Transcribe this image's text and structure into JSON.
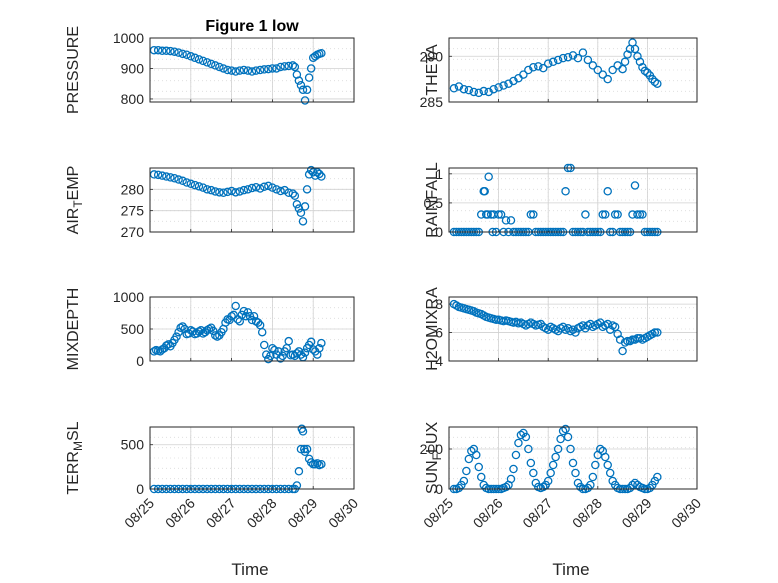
{
  "figure_title": "Figure 1 low",
  "colors": {
    "marker": "#0072BD",
    "axis": "#262626",
    "grid": "#dcdcdc"
  },
  "chart_data": [
    {
      "type": "scatter",
      "title": "Figure 1 low",
      "xlabel": "",
      "ylabel": "PRESSURE",
      "xlim": [
        0,
        5
      ],
      "ylim": [
        790,
        1000
      ],
      "yticks": [
        800,
        900,
        1000
      ],
      "xticks": [
        0,
        1,
        2,
        3,
        4,
        5
      ],
      "xticklabels": [
        "08/25",
        "08/26",
        "08/27",
        "08/28",
        "08/29",
        "08/30"
      ],
      "show_xticklabels": false,
      "grid": true,
      "x": [
        0.1,
        0.2,
        0.3,
        0.4,
        0.5,
        0.6,
        0.7,
        0.8,
        0.9,
        1.0,
        1.1,
        1.2,
        1.3,
        1.4,
        1.5,
        1.6,
        1.7,
        1.8,
        1.9,
        2.0,
        2.1,
        2.2,
        2.3,
        2.4,
        2.5,
        2.6,
        2.7,
        2.8,
        2.9,
        3.0,
        3.1,
        3.2,
        3.3,
        3.4,
        3.5,
        3.55,
        3.6,
        3.65,
        3.7,
        3.75,
        3.8,
        3.85,
        3.9,
        3.95,
        4.0,
        4.05,
        4.1,
        4.15,
        4.2
      ],
      "y": [
        960,
        960,
        958,
        958,
        957,
        955,
        952,
        948,
        945,
        940,
        935,
        930,
        925,
        920,
        915,
        910,
        905,
        900,
        895,
        893,
        890,
        893,
        895,
        893,
        890,
        893,
        895,
        897,
        898,
        900,
        900,
        905,
        907,
        908,
        910,
        905,
        880,
        860,
        845,
        830,
        795,
        830,
        870,
        900,
        935,
        940,
        945,
        948,
        950
      ]
    },
    {
      "type": "scatter",
      "title": "",
      "xlabel": "",
      "ylabel": "THETA",
      "xlim": [
        0,
        5
      ],
      "ylim": [
        285,
        292
      ],
      "yticks": [
        285,
        290
      ],
      "xticks": [
        0,
        1,
        2,
        3,
        4,
        5
      ],
      "xticklabels": [
        "08/25",
        "08/26",
        "08/27",
        "08/28",
        "08/29",
        "08/30"
      ],
      "show_xticklabels": false,
      "grid": true,
      "x": [
        0.1,
        0.2,
        0.3,
        0.4,
        0.5,
        0.6,
        0.7,
        0.8,
        0.9,
        1.0,
        1.1,
        1.2,
        1.3,
        1.4,
        1.5,
        1.6,
        1.7,
        1.8,
        1.9,
        2.0,
        2.1,
        2.2,
        2.3,
        2.4,
        2.5,
        2.6,
        2.7,
        2.8,
        2.9,
        3.0,
        3.1,
        3.2,
        3.3,
        3.4,
        3.5,
        3.55,
        3.6,
        3.65,
        3.7,
        3.75,
        3.8,
        3.85,
        3.9,
        3.95,
        4.0,
        4.05,
        4.1,
        4.15,
        4.2
      ],
      "y": [
        286.5,
        286.7,
        286.4,
        286.3,
        286.1,
        286.0,
        286.2,
        286.1,
        286.4,
        286.6,
        286.8,
        287.0,
        287.3,
        287.6,
        288.0,
        288.5,
        288.8,
        288.9,
        288.7,
        289.2,
        289.4,
        289.6,
        289.8,
        289.9,
        290.1,
        289.8,
        290.4,
        289.6,
        289.0,
        288.5,
        288.0,
        287.5,
        288.5,
        289.0,
        288.6,
        289.4,
        290.2,
        290.8,
        291.5,
        290.8,
        290.0,
        289.4,
        288.8,
        288.4,
        288.2,
        287.9,
        287.5,
        287.2,
        287.0
      ]
    },
    {
      "type": "scatter",
      "title": "",
      "xlabel": "",
      "ylabel": "AIR_TEMP",
      "xlim": [
        0,
        5
      ],
      "ylim": [
        270,
        285
      ],
      "yticks": [
        270,
        275,
        280
      ],
      "xticks": [
        0,
        1,
        2,
        3,
        4,
        5
      ],
      "xticklabels": [
        "08/25",
        "08/26",
        "08/27",
        "08/28",
        "08/29",
        "08/30"
      ],
      "show_xticklabels": false,
      "grid": true,
      "x": [
        0.1,
        0.2,
        0.3,
        0.4,
        0.5,
        0.6,
        0.7,
        0.8,
        0.9,
        1.0,
        1.1,
        1.2,
        1.3,
        1.4,
        1.5,
        1.6,
        1.7,
        1.8,
        1.9,
        2.0,
        2.1,
        2.2,
        2.3,
        2.4,
        2.5,
        2.6,
        2.7,
        2.8,
        2.9,
        3.0,
        3.1,
        3.2,
        3.3,
        3.4,
        3.5,
        3.55,
        3.6,
        3.65,
        3.7,
        3.75,
        3.8,
        3.85,
        3.9,
        3.95,
        4.0,
        4.05,
        4.1,
        4.15,
        4.2
      ],
      "y": [
        283.5,
        283.4,
        283.2,
        283.0,
        282.8,
        282.6,
        282.3,
        282.0,
        281.6,
        281.3,
        281.0,
        280.7,
        280.4,
        280.0,
        279.8,
        279.5,
        279.3,
        279.2,
        279.4,
        279.6,
        279.3,
        279.5,
        279.8,
        280.0,
        280.3,
        280.5,
        280.2,
        280.6,
        280.8,
        280.4,
        280.0,
        279.6,
        279.8,
        279.2,
        279.0,
        278.5,
        276.5,
        275.5,
        274.5,
        272.5,
        276.0,
        280.0,
        283.5,
        284.5,
        284.0,
        283.2,
        284.0,
        283.6,
        283.0
      ]
    },
    {
      "type": "scatter",
      "title": "",
      "xlabel": "",
      "ylabel": "RAINFALL",
      "xlim": [
        0,
        5
      ],
      "ylim": [
        0,
        1.1
      ],
      "yticks": [
        0,
        0.5,
        1
      ],
      "xticks": [
        0,
        1,
        2,
        3,
        4,
        5
      ],
      "xticklabels": [
        "08/25",
        "08/26",
        "08/27",
        "08/28",
        "08/29",
        "08/30"
      ],
      "show_xticklabels": false,
      "grid": true,
      "x": [
        0.1,
        0.15,
        0.2,
        0.25,
        0.3,
        0.35,
        0.4,
        0.45,
        0.5,
        0.55,
        0.6,
        0.65,
        0.7,
        0.72,
        0.75,
        0.78,
        0.8,
        0.85,
        0.88,
        0.9,
        0.95,
        1.0,
        1.05,
        1.1,
        1.15,
        1.2,
        1.25,
        1.3,
        1.35,
        1.4,
        1.45,
        1.5,
        1.55,
        1.6,
        1.65,
        1.7,
        1.75,
        1.8,
        1.85,
        1.9,
        1.95,
        2.0,
        2.05,
        2.1,
        2.15,
        2.2,
        2.25,
        2.3,
        2.35,
        2.4,
        2.45,
        2.5,
        2.55,
        2.6,
        2.65,
        2.7,
        2.75,
        2.8,
        2.85,
        2.9,
        2.95,
        3.0,
        3.05,
        3.1,
        3.15,
        3.2,
        3.25,
        3.3,
        3.35,
        3.4,
        3.45,
        3.5,
        3.55,
        3.6,
        3.65,
        3.7,
        3.75,
        3.8,
        3.85,
        3.9,
        3.95,
        4.0,
        4.05,
        4.1,
        4.15,
        4.2
      ],
      "y": [
        0,
        0,
        0,
        0,
        0,
        0,
        0,
        0,
        0,
        0,
        0,
        0.3,
        0.7,
        0.7,
        0.3,
        0.3,
        0.95,
        0.3,
        0,
        0.3,
        0,
        0.3,
        0.3,
        0,
        0.2,
        0,
        0.2,
        0,
        0,
        0,
        0,
        0,
        0,
        0,
        0.3,
        0.3,
        0,
        0,
        0,
        0,
        0,
        0,
        0,
        0,
        0,
        0,
        0,
        0,
        0.7,
        1.1,
        1.1,
        0,
        0,
        0,
        0,
        0,
        0.3,
        0,
        0,
        0,
        0,
        0,
        0,
        0.3,
        0.3,
        0.7,
        0,
        0,
        0.3,
        0.3,
        0,
        0,
        0,
        0,
        0,
        0.3,
        0.8,
        0.3,
        0.3,
        0.3,
        0,
        0,
        0,
        0,
        0,
        0
      ]
    },
    {
      "type": "scatter",
      "title": "",
      "xlabel": "",
      "ylabel": "MIXDEPTH",
      "xlim": [
        0,
        5
      ],
      "ylim": [
        0,
        1000
      ],
      "yticks": [
        0,
        500,
        1000
      ],
      "xticks": [
        0,
        1,
        2,
        3,
        4,
        5
      ],
      "xticklabels": [
        "08/25",
        "08/26",
        "08/27",
        "08/28",
        "08/29",
        "08/30"
      ],
      "show_xticklabels": false,
      "grid": true,
      "x": [
        0.1,
        0.15,
        0.2,
        0.25,
        0.3,
        0.35,
        0.4,
        0.45,
        0.5,
        0.55,
        0.6,
        0.65,
        0.7,
        0.75,
        0.8,
        0.85,
        0.9,
        0.95,
        1.0,
        1.05,
        1.1,
        1.15,
        1.2,
        1.25,
        1.3,
        1.35,
        1.4,
        1.45,
        1.5,
        1.55,
        1.6,
        1.65,
        1.7,
        1.75,
        1.8,
        1.85,
        1.9,
        1.95,
        2.0,
        2.05,
        2.1,
        2.15,
        2.2,
        2.25,
        2.3,
        2.35,
        2.4,
        2.45,
        2.5,
        2.55,
        2.6,
        2.65,
        2.7,
        2.75,
        2.8,
        2.85,
        2.9,
        2.95,
        3.0,
        3.05,
        3.1,
        3.15,
        3.2,
        3.25,
        3.3,
        3.35,
        3.4,
        3.45,
        3.5,
        3.55,
        3.6,
        3.65,
        3.7,
        3.75,
        3.8,
        3.85,
        3.9,
        3.95,
        4.0,
        4.05,
        4.1,
        4.15,
        4.2
      ],
      "y": [
        150,
        170,
        160,
        150,
        180,
        200,
        240,
        260,
        230,
        280,
        330,
        380,
        450,
        520,
        540,
        500,
        420,
        430,
        480,
        460,
        420,
        430,
        460,
        480,
        430,
        450,
        480,
        500,
        520,
        470,
        400,
        380,
        400,
        450,
        500,
        600,
        650,
        640,
        700,
        720,
        860,
        650,
        620,
        720,
        780,
        700,
        760,
        700,
        640,
        700,
        620,
        600,
        560,
        450,
        250,
        100,
        30,
        80,
        200,
        170,
        100,
        150,
        40,
        80,
        150,
        200,
        310,
        90,
        100,
        80,
        120,
        150,
        100,
        60,
        130,
        200,
        250,
        300,
        180,
        150,
        100,
        200,
        280
      ]
    },
    {
      "type": "scatter",
      "title": "",
      "xlabel": "",
      "ylabel": "H2OMIXRA",
      "xlim": [
        0,
        5
      ],
      "ylim": [
        4,
        8.5
      ],
      "yticks": [
        4,
        6,
        8
      ],
      "xticks": [
        0,
        1,
        2,
        3,
        4,
        5
      ],
      "xticklabels": [
        "08/25",
        "08/26",
        "08/27",
        "08/28",
        "08/29",
        "08/30"
      ],
      "show_xticklabels": false,
      "grid": true,
      "x": [
        0.1,
        0.15,
        0.2,
        0.25,
        0.3,
        0.35,
        0.4,
        0.45,
        0.5,
        0.55,
        0.6,
        0.65,
        0.7,
        0.75,
        0.8,
        0.85,
        0.9,
        0.95,
        1.0,
        1.05,
        1.1,
        1.15,
        1.2,
        1.25,
        1.3,
        1.35,
        1.4,
        1.45,
        1.5,
        1.55,
        1.6,
        1.65,
        1.7,
        1.75,
        1.8,
        1.85,
        1.9,
        1.95,
        2.0,
        2.05,
        2.1,
        2.15,
        2.2,
        2.25,
        2.3,
        2.35,
        2.4,
        2.45,
        2.5,
        2.55,
        2.6,
        2.65,
        2.7,
        2.75,
        2.8,
        2.85,
        2.9,
        2.95,
        3.0,
        3.05,
        3.1,
        3.15,
        3.2,
        3.25,
        3.3,
        3.35,
        3.4,
        3.45,
        3.5,
        3.55,
        3.6,
        3.65,
        3.7,
        3.75,
        3.8,
        3.85,
        3.9,
        3.95,
        4.0,
        4.05,
        4.1,
        4.15,
        4.2
      ],
      "y": [
        8.0,
        7.9,
        7.8,
        7.75,
        7.7,
        7.65,
        7.6,
        7.55,
        7.5,
        7.4,
        7.35,
        7.3,
        7.2,
        7.1,
        7.05,
        7.0,
        6.95,
        6.9,
        6.9,
        6.85,
        6.8,
        6.85,
        6.8,
        6.75,
        6.7,
        6.75,
        6.65,
        6.7,
        6.6,
        6.5,
        6.6,
        6.7,
        6.6,
        6.5,
        6.55,
        6.6,
        6.4,
        6.3,
        6.2,
        6.4,
        6.3,
        6.2,
        6.1,
        6.3,
        6.4,
        6.2,
        6.3,
        6.1,
        6.2,
        6.0,
        6.3,
        6.4,
        6.5,
        6.3,
        6.5,
        6.6,
        6.4,
        6.5,
        6.6,
        6.7,
        6.4,
        6.5,
        6.6,
        6.2,
        6.5,
        6.4,
        5.9,
        5.5,
        4.7,
        5.3,
        5.4,
        5.4,
        5.5,
        5.5,
        5.6,
        5.6,
        5.5,
        5.6,
        5.7,
        5.8,
        5.9,
        6.0,
        6.0
      ]
    },
    {
      "type": "scatter",
      "title": "",
      "xlabel": "Time",
      "ylabel": "TERR_MSL",
      "xlim": [
        0,
        5
      ],
      "ylim": [
        0,
        700
      ],
      "yticks": [
        0,
        500
      ],
      "xticks": [
        0,
        1,
        2,
        3,
        4,
        5
      ],
      "xticklabels": [
        "08/25",
        "08/26",
        "08/27",
        "08/28",
        "08/29",
        "08/30"
      ],
      "show_xticklabels": true,
      "grid": true,
      "x": [
        0.1,
        0.2,
        0.3,
        0.4,
        0.5,
        0.6,
        0.7,
        0.8,
        0.9,
        1.0,
        1.1,
        1.2,
        1.3,
        1.4,
        1.5,
        1.6,
        1.7,
        1.8,
        1.9,
        2.0,
        2.1,
        2.2,
        2.3,
        2.4,
        2.5,
        2.6,
        2.7,
        2.8,
        2.9,
        3.0,
        3.1,
        3.2,
        3.3,
        3.4,
        3.5,
        3.55,
        3.6,
        3.65,
        3.7,
        3.72,
        3.75,
        3.78,
        3.8,
        3.85,
        3.9,
        3.95,
        4.0,
        4.05,
        4.1,
        4.15,
        4.2
      ],
      "y": [
        0,
        0,
        0,
        0,
        0,
        0,
        0,
        0,
        0,
        0,
        0,
        0,
        0,
        0,
        0,
        0,
        0,
        0,
        0,
        0,
        0,
        0,
        0,
        0,
        0,
        0,
        0,
        0,
        0,
        0,
        0,
        0,
        0,
        0,
        0,
        0,
        40,
        200,
        450,
        680,
        650,
        450,
        420,
        450,
        340,
        300,
        280,
        280,
        290,
        270,
        280
      ]
    },
    {
      "type": "scatter",
      "title": "",
      "xlabel": "Time",
      "ylabel": "SUN_FLUX",
      "xlim": [
        0,
        5
      ],
      "ylim": [
        0,
        310
      ],
      "yticks": [
        0,
        200
      ],
      "xticks": [
        0,
        1,
        2,
        3,
        4,
        5
      ],
      "xticklabels": [
        "08/25",
        "08/26",
        "08/27",
        "08/28",
        "08/29",
        "08/30"
      ],
      "show_xticklabels": true,
      "grid": true,
      "x": [
        0.1,
        0.15,
        0.2,
        0.25,
        0.3,
        0.35,
        0.4,
        0.45,
        0.5,
        0.55,
        0.6,
        0.65,
        0.7,
        0.75,
        0.8,
        0.85,
        0.9,
        0.95,
        1.0,
        1.05,
        1.1,
        1.15,
        1.2,
        1.25,
        1.3,
        1.35,
        1.4,
        1.45,
        1.5,
        1.55,
        1.6,
        1.65,
        1.7,
        1.75,
        1.8,
        1.85,
        1.9,
        1.95,
        2.0,
        2.05,
        2.1,
        2.15,
        2.2,
        2.25,
        2.3,
        2.35,
        2.4,
        2.45,
        2.5,
        2.55,
        2.6,
        2.65,
        2.7,
        2.75,
        2.8,
        2.85,
        2.9,
        2.95,
        3.0,
        3.05,
        3.1,
        3.15,
        3.2,
        3.25,
        3.3,
        3.35,
        3.4,
        3.45,
        3.5,
        3.55,
        3.6,
        3.65,
        3.7,
        3.75,
        3.8,
        3.85,
        3.9,
        3.95,
        4.0,
        4.05,
        4.1,
        4.15,
        4.2
      ],
      "y": [
        0,
        0,
        5,
        20,
        40,
        90,
        150,
        190,
        200,
        170,
        110,
        60,
        20,
        5,
        0,
        0,
        0,
        0,
        0,
        0,
        5,
        10,
        20,
        50,
        100,
        170,
        230,
        270,
        280,
        260,
        200,
        130,
        80,
        30,
        10,
        5,
        10,
        20,
        40,
        80,
        120,
        160,
        200,
        250,
        290,
        300,
        260,
        200,
        130,
        80,
        30,
        10,
        0,
        0,
        5,
        20,
        60,
        120,
        170,
        200,
        190,
        160,
        120,
        80,
        40,
        20,
        5,
        0,
        0,
        0,
        0,
        5,
        20,
        30,
        20,
        10,
        5,
        0,
        0,
        5,
        20,
        40,
        60
      ]
    }
  ]
}
